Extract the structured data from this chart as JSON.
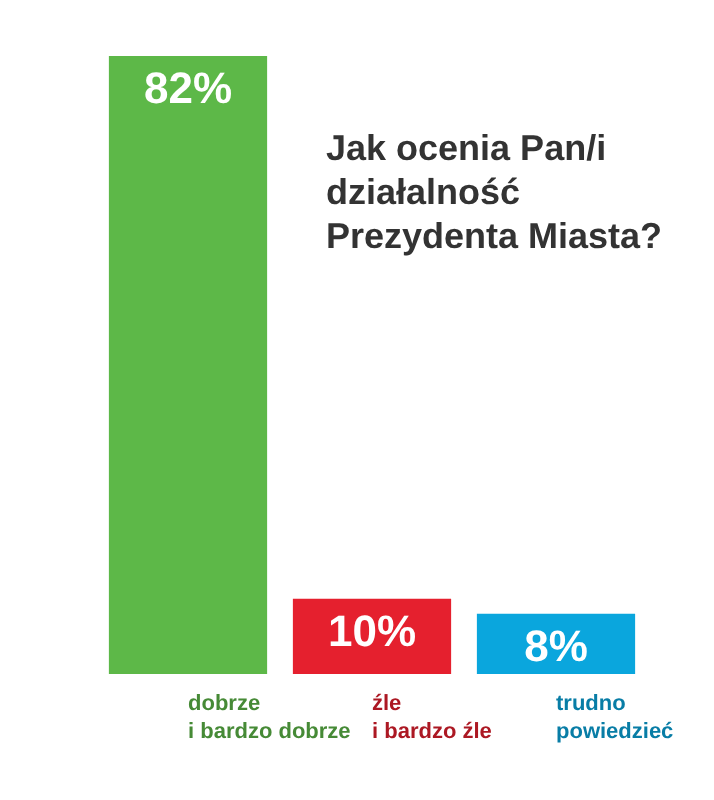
{
  "chart_data": {
    "type": "bar",
    "title": "Jak ocenia Pan/i działalność Prezydenta Miasta?",
    "categories": [
      "dobrze i bardzo dobrze",
      "źle i bardzo źle",
      "trudno powiedzieć"
    ],
    "values": [
      82,
      10,
      8
    ],
    "colors": [
      "#5db848",
      "#e5202e",
      "#0aa6dd"
    ],
    "value_labels": [
      "82%",
      "10%",
      "8%"
    ],
    "tick_labels": "x",
    "grid": false
  }
}
